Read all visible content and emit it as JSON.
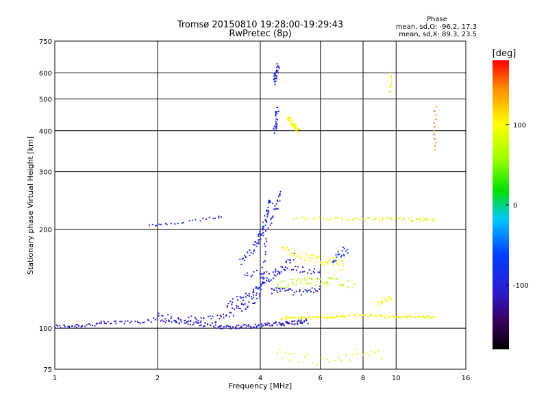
{
  "chart_data": {
    "type": "scatter",
    "title": "Tromsø 20150810 19:28:00-19:29:43",
    "subtitle": "RwPretec (8p)",
    "xlabel": "Frequency [MHz]",
    "ylabel": "Stationary phase Virtual Height [km]",
    "x_scale": "log",
    "y_scale": "log",
    "xlim": [
      1,
      16
    ],
    "ylim": [
      75,
      750
    ],
    "x_ticks": [
      1,
      2,
      4,
      6,
      8,
      10,
      16
    ],
    "x_tick_labels": [
      "1",
      "2",
      "4",
      "6",
      "8",
      "10",
      "16"
    ],
    "y_ticks": [
      75,
      100,
      200,
      300,
      400,
      500,
      600,
      750
    ],
    "y_tick_labels": [
      "75",
      "100",
      "200",
      "300",
      "400",
      "500",
      "600",
      "750"
    ],
    "grid": true,
    "stats": {
      "heading": "Phase",
      "line_o": "mean, sd,O: -96.2, 17.3",
      "line_x": "mean, sd,X:  89.3, 23.5"
    },
    "colorbar": {
      "label": "[deg]",
      "range": [
        -180,
        180
      ],
      "ticks": [
        100,
        0,
        -100
      ],
      "tick_labels": [
        "100",
        "0",
        "-100"
      ]
    },
    "traces": [
      {
        "x": [
          1,
          1.2,
          1.5,
          2,
          2.5,
          3,
          3.5,
          4,
          4.5,
          5,
          5.5
        ],
        "y": [
          101,
          102,
          104,
          106,
          104,
          101,
          101,
          102,
          103,
          104,
          105
        ],
        "phase": -110,
        "n": 200,
        "jitter": 0.015
      },
      {
        "x": [
          2,
          2.5,
          3,
          3.5,
          4,
          4.2
        ],
        "y": [
          108,
          106,
          107,
          115,
          125,
          200
        ],
        "phase": -105,
        "n": 90,
        "jitter": 0.03
      },
      {
        "x": [
          3.2,
          3.5,
          3.8,
          4,
          4.2,
          4.6,
          5
        ],
        "y": [
          118,
          122,
          128,
          135,
          140,
          150,
          165
        ],
        "phase": -95,
        "n": 70,
        "jitter": 0.03
      },
      {
        "x": [
          1.9,
          2.1,
          2.4,
          2.8,
          3.1
        ],
        "y": [
          205,
          207,
          210,
          215,
          220
        ],
        "phase": -95,
        "n": 25,
        "jitter": 0.01
      },
      {
        "x": [
          3.5,
          3.8,
          4,
          4.1,
          4.2,
          4.3
        ],
        "y": [
          160,
          175,
          190,
          205,
          225,
          245
        ],
        "phase": -90,
        "n": 70,
        "jitter": 0.03
      },
      {
        "x": [
          4.3,
          4.5,
          4.8,
          5.2,
          5.6,
          6
        ],
        "y": [
          130,
          131,
          130,
          128,
          130,
          132
        ],
        "phase": -100,
        "n": 40,
        "jitter": 0.02
      },
      {
        "x": [
          3.6,
          4,
          4.5,
          5,
          5.5,
          6
        ],
        "y": [
          145,
          148,
          150,
          152,
          150,
          148
        ],
        "phase": -105,
        "n": 40,
        "jitter": 0.02
      },
      {
        "x": [
          4.4,
          4.5
        ],
        "y": [
          560,
          630
        ],
        "phase": -100,
        "n": 30,
        "jitter": 0.02
      },
      {
        "x": [
          4.4,
          4.5
        ],
        "y": [
          395,
          470
        ],
        "phase": -95,
        "n": 25,
        "jitter": 0.02
      },
      {
        "x": [
          4.3,
          4.6
        ],
        "y": [
          210,
          260
        ],
        "phase": -100,
        "n": 20,
        "jitter": 0.03
      },
      {
        "x": [
          4.8,
          5.0,
          5.2
        ],
        "y": [
          440,
          415,
          400
        ],
        "phase": 95,
        "n": 45,
        "jitter": 0.015
      },
      {
        "x": [
          4.6,
          5,
          5.5,
          6,
          6.5,
          7
        ],
        "y": [
          175,
          170,
          165,
          160,
          160,
          155
        ],
        "phase": 95,
        "n": 55,
        "jitter": 0.03
      },
      {
        "x": [
          4.5,
          5,
          5.5,
          6,
          6.5,
          7.5
        ],
        "y": [
          135,
          138,
          140,
          138,
          140,
          135
        ],
        "phase": 65,
        "n": 50,
        "jitter": 0.025
      },
      {
        "x": [
          4.6,
          5,
          5.5,
          6,
          6.5,
          7,
          8,
          9,
          10,
          11,
          12,
          13
        ],
        "y": [
          107,
          108,
          107,
          108,
          108,
          109,
          109,
          109,
          108,
          108,
          108,
          108
        ],
        "phase": 95,
        "n": 110,
        "jitter": 0.008
      },
      {
        "x": [
          5,
          6,
          7,
          8,
          9,
          10,
          11,
          12,
          13
        ],
        "y": [
          216,
          216,
          215,
          215,
          215,
          215,
          214,
          214,
          214
        ],
        "phase": 80,
        "n": 60,
        "jitter": 0.01
      },
      {
        "x": [
          8.8,
          9.3,
          9.7
        ],
        "y": [
          118,
          122,
          125
        ],
        "phase": 100,
        "n": 15,
        "jitter": 0.02
      },
      {
        "x": [
          9.6,
          9.7
        ],
        "y": [
          520,
          600
        ],
        "phase": 110,
        "n": 10,
        "jitter": 0.01
      },
      {
        "x": [
          13,
          13
        ],
        "y": [
          350,
          470
        ],
        "phase": 150,
        "n": 12,
        "jitter": 0.004
      },
      {
        "x": [
          4.5,
          5,
          6,
          7,
          8,
          9
        ],
        "y": [
          84,
          82,
          80,
          82,
          84,
          82
        ],
        "phase": 80,
        "n": 30,
        "jitter": 0.04
      },
      {
        "x": [
          6.5,
          7.2
        ],
        "y": [
          160,
          175
        ],
        "phase": -70,
        "n": 20,
        "jitter": 0.03
      }
    ]
  }
}
